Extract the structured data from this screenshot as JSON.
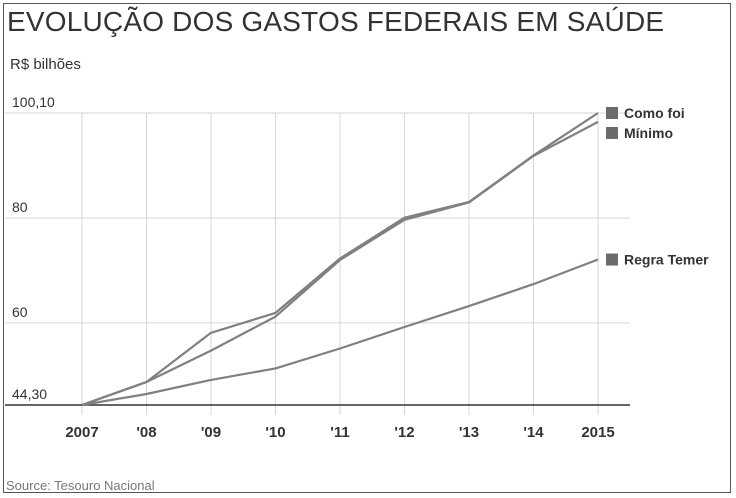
{
  "title": "EVOLUÇÃO DOS GASTOS FEDERAIS EM SAÚDE",
  "unit_label": "R$ bilhões",
  "source": "Source: Tesouro Nacional",
  "colors": {
    "line": "#808080",
    "grid": "#d6d6d6",
    "axis": "#333333",
    "text": "#333333",
    "source": "#777777"
  },
  "chart_data": {
    "type": "line",
    "title": "EVOLUÇÃO DOS GASTOS FEDERAIS EM SAÚDE",
    "xlabel": "",
    "ylabel": "R$ bilhões",
    "x": [
      "2007",
      "'08",
      "'09",
      "'10",
      "'11",
      "'12",
      "'13",
      "'14",
      "2015"
    ],
    "ylim": [
      44.3,
      100.1
    ],
    "y_ticks": [
      44.3,
      60,
      80,
      100.1
    ],
    "y_tick_labels": [
      "44,30",
      "60",
      "80",
      "100,10"
    ],
    "grid": true,
    "legend": "right-inline",
    "series": [
      {
        "name": "Como foi",
        "values": [
          44.3,
          48.7,
          58.1,
          61.9,
          72.3,
          80.1,
          83.1,
          92.0,
          100.1
        ]
      },
      {
        "name": "Mínimo",
        "values": [
          44.3,
          48.7,
          54.7,
          61.2,
          72.0,
          79.7,
          83.0,
          91.9,
          98.4
        ]
      },
      {
        "name": "Regra Temer",
        "values": [
          44.3,
          46.4,
          49.1,
          51.3,
          55.1,
          59.2,
          63.2,
          67.4,
          72.1
        ]
      }
    ]
  }
}
